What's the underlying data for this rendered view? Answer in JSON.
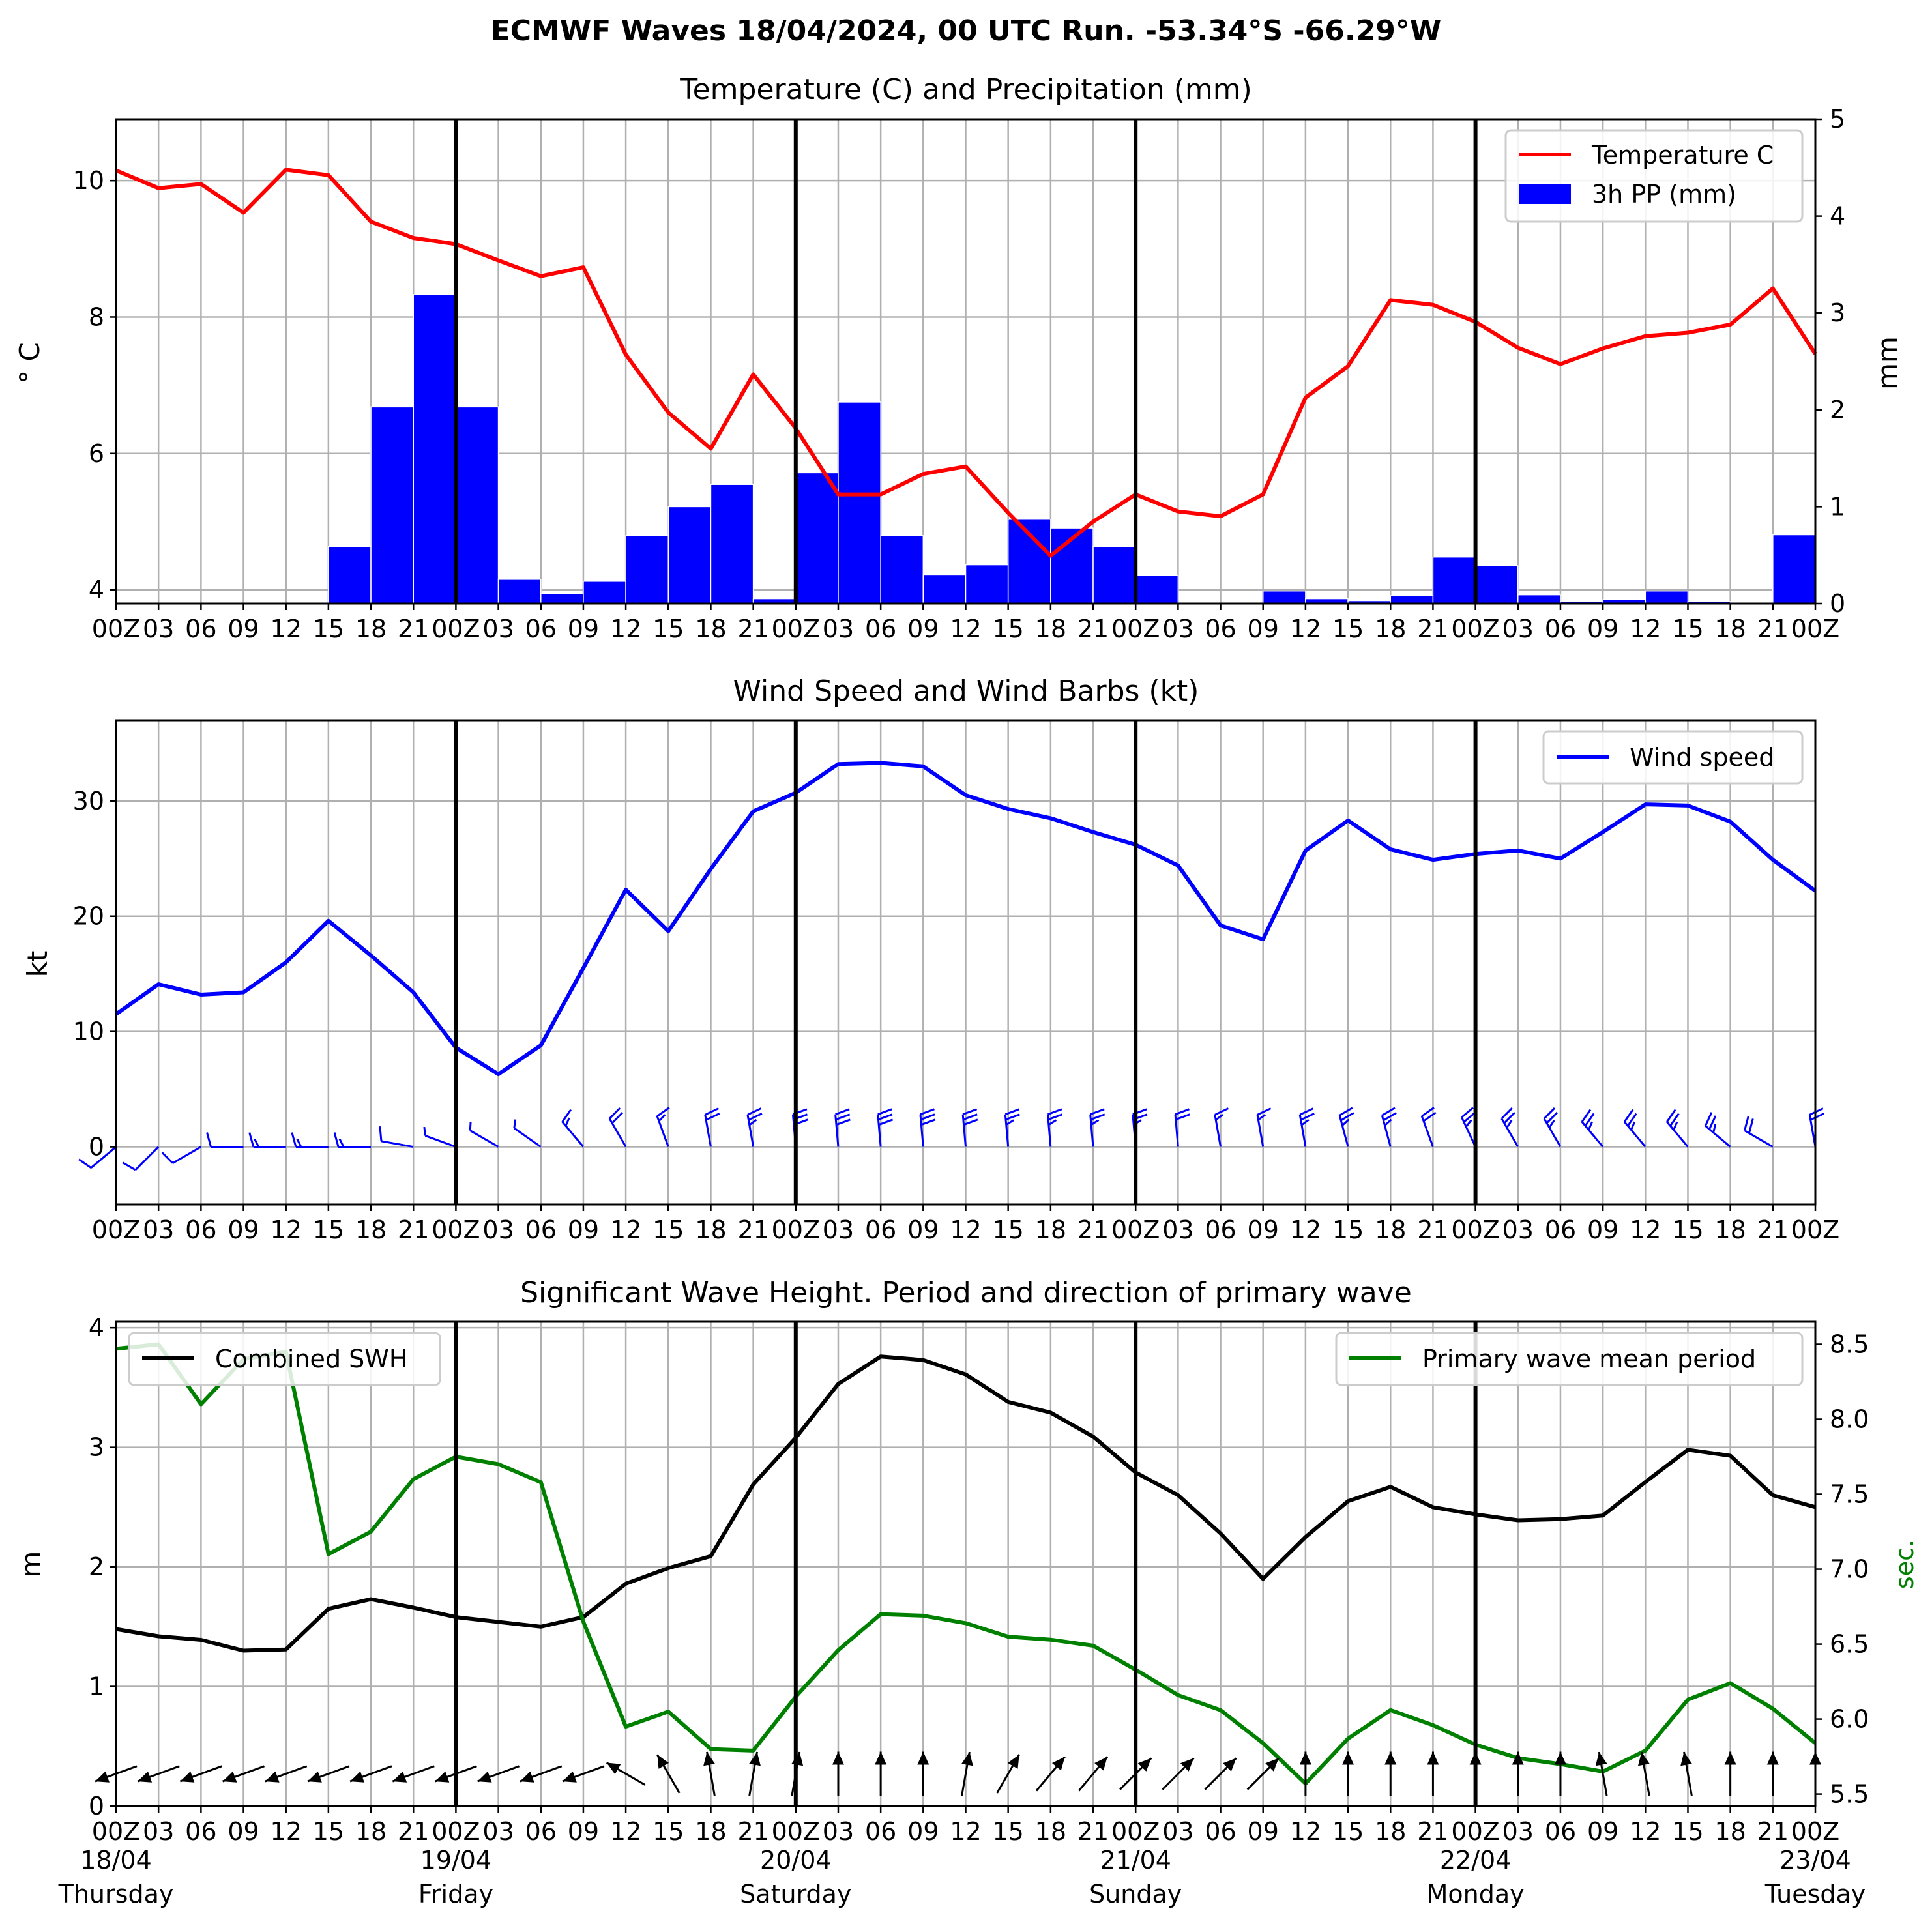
{
  "title": "ECMWF Waves 18/04/2024, 00 UTC Run. -53.34°S -66.29°W",
  "x_tick_labels": [
    "00Z",
    "03",
    "06",
    "09",
    "12",
    "15",
    "18",
    "21",
    "00Z",
    "03",
    "06",
    "09",
    "12",
    "15",
    "18",
    "21",
    "00Z",
    "03",
    "06",
    "09",
    "12",
    "15",
    "18",
    "21",
    "00Z",
    "03",
    "06",
    "09",
    "12",
    "15",
    "18",
    "21",
    "00Z",
    "03",
    "06",
    "09",
    "12",
    "15",
    "18",
    "21",
    "00Z"
  ],
  "day_labels": [
    {
      "date": "18/04",
      "day": "Thursday"
    },
    {
      "date": "19/04",
      "day": "Friday"
    },
    {
      "date": "20/04",
      "day": "Saturday"
    },
    {
      "date": "21/04",
      "day": "Sunday"
    },
    {
      "date": "22/04",
      "day": "Monday"
    },
    {
      "date": "23/04",
      "day": "Tuesday"
    }
  ],
  "colors": {
    "temperature": "#ff0000",
    "precip": "#0000ff",
    "wind": "#0000ff",
    "swh": "#000000",
    "period": "#008000",
    "grid": "#b0b0b0"
  },
  "chart_data": [
    {
      "type": "line",
      "title": "Temperature (C) and Precipitation (mm)",
      "x_unit": "hours since 18/04 00Z, 3h steps",
      "ylabel": "$^\\circ$C",
      "ylabel_display": "° C",
      "ylabel_right": "mm",
      "ylim": [
        3.8,
        10.9
      ],
      "yticks": [
        4,
        6,
        8,
        10
      ],
      "ylim_right": [
        0,
        5
      ],
      "yticks_right": [
        0,
        1,
        2,
        3,
        4,
        5
      ],
      "legend": [
        "Temperature C",
        "3h PP (mm)"
      ],
      "legend_position": "top-right",
      "grid": true,
      "series": [
        {
          "name": "Temperature C",
          "type": "line",
          "values": [
            10.15,
            9.89,
            9.95,
            9.53,
            10.16,
            10.08,
            9.4,
            9.16,
            9.07,
            8.83,
            8.6,
            8.73,
            7.45,
            6.6,
            6.07,
            7.16,
            6.37,
            5.4,
            5.4,
            5.7,
            5.81,
            5.13,
            4.5,
            5.0,
            5.4,
            5.15,
            5.08,
            5.4,
            6.82,
            7.28,
            8.25,
            8.18,
            7.93,
            7.55,
            7.31,
            7.54,
            7.72,
            7.77,
            7.89,
            8.42,
            7.46
          ]
        },
        {
          "name": "3h PP (mm)",
          "type": "bar",
          "values": [
            0,
            0,
            0,
            0,
            0,
            0.59,
            2.03,
            3.19,
            2.03,
            0.25,
            0.1,
            0.23,
            0.7,
            1.0,
            1.23,
            0.05,
            1.35,
            2.08,
            0.7,
            0.3,
            0.4,
            0.87,
            0.78,
            0.59,
            0.29,
            0,
            0,
            0.13,
            0.05,
            0.03,
            0.08,
            0.48,
            0.39,
            0.09,
            0.02,
            0.04,
            0.13,
            0.02,
            0,
            0.71
          ]
        }
      ]
    },
    {
      "type": "line",
      "title": "Wind Speed and Wind Barbs (kt)",
      "x_unit": "hours since 18/04 00Z, 3h steps",
      "ylabel": "kt",
      "ylim": [
        -5,
        37
      ],
      "yticks": [
        0,
        10,
        20,
        30
      ],
      "legend": [
        "Wind speed"
      ],
      "legend_position": "top-right",
      "grid": true,
      "series": [
        {
          "name": "Wind speed",
          "values": [
            11.5,
            14.1,
            13.2,
            13.4,
            16.0,
            19.6,
            16.6,
            13.4,
            8.6,
            6.3,
            8.8,
            15.5,
            22.3,
            18.7,
            24.1,
            29.1,
            30.7,
            33.2,
            33.3,
            33.0,
            30.5,
            29.3,
            28.5,
            27.3,
            26.2,
            24.4,
            19.2,
            18.0,
            25.7,
            28.3,
            25.8,
            24.9,
            25.4,
            25.7,
            25.0,
            27.3,
            29.7,
            29.6,
            28.2,
            24.9,
            22.2
          ]
        }
      ],
      "barbs": {
        "direction_from_deg": [
          230,
          225,
          240,
          270,
          270,
          270,
          270,
          280,
          290,
          300,
          305,
          320,
          330,
          340,
          350,
          350,
          355,
          355,
          355,
          355,
          355,
          355,
          355,
          355,
          355,
          355,
          350,
          350,
          350,
          345,
          345,
          340,
          335,
          330,
          330,
          320,
          320,
          320,
          310,
          300,
          350
        ]
      }
    },
    {
      "type": "line",
      "title": "Significant Wave Height. Period and direction of primary wave",
      "x_unit": "hours since 18/04 00Z, 3h steps",
      "ylabel": "m",
      "ylabel_right": "sec.",
      "ylim": [
        0,
        4.05
      ],
      "yticks": [
        0,
        1,
        2,
        3,
        4
      ],
      "ylim_right": [
        5.42,
        8.65
      ],
      "yticks_right": [
        5.5,
        6.0,
        6.5,
        7.0,
        7.5,
        8.0,
        8.5
      ],
      "legend": [
        "Combined SWH",
        "Primary wave mean period"
      ],
      "legend_position": "top-left / top-right",
      "grid": true,
      "series": [
        {
          "name": "Combined SWH",
          "values": [
            1.48,
            1.42,
            1.39,
            1.3,
            1.31,
            1.65,
            1.73,
            1.66,
            1.58,
            1.54,
            1.5,
            1.58,
            1.86,
            1.99,
            2.09,
            2.69,
            3.08,
            3.53,
            3.76,
            3.73,
            3.61,
            3.38,
            3.29,
            3.09,
            2.79,
            2.6,
            2.28,
            1.9,
            2.25,
            2.55,
            2.67,
            2.5,
            2.44,
            2.39,
            2.4,
            2.43,
            2.71,
            2.98,
            2.93,
            2.6,
            2.5
          ]
        },
        {
          "name": "Primary wave mean period",
          "values": [
            8.47,
            8.5,
            8.1,
            8.4,
            8.45,
            7.1,
            7.25,
            7.6,
            7.75,
            7.7,
            7.58,
            6.65,
            5.95,
            6.05,
            5.8,
            5.79,
            6.15,
            6.46,
            6.7,
            6.69,
            6.64,
            6.55,
            6.53,
            6.49,
            6.33,
            6.16,
            6.06,
            5.84,
            5.57,
            5.87,
            6.06,
            5.96,
            5.83,
            5.74,
            5.7,
            5.65,
            5.79,
            6.13,
            6.24,
            6.07,
            5.84
          ]
        }
      ],
      "arrows": {
        "direction_to_deg": [
          250,
          250,
          250,
          250,
          250,
          250,
          250,
          250,
          250,
          250,
          250,
          250,
          300,
          330,
          350,
          10,
          10,
          0,
          0,
          0,
          10,
          30,
          40,
          40,
          45,
          45,
          45,
          45,
          0,
          0,
          0,
          0,
          0,
          0,
          0,
          350,
          350,
          350,
          0,
          0,
          0
        ]
      }
    }
  ]
}
